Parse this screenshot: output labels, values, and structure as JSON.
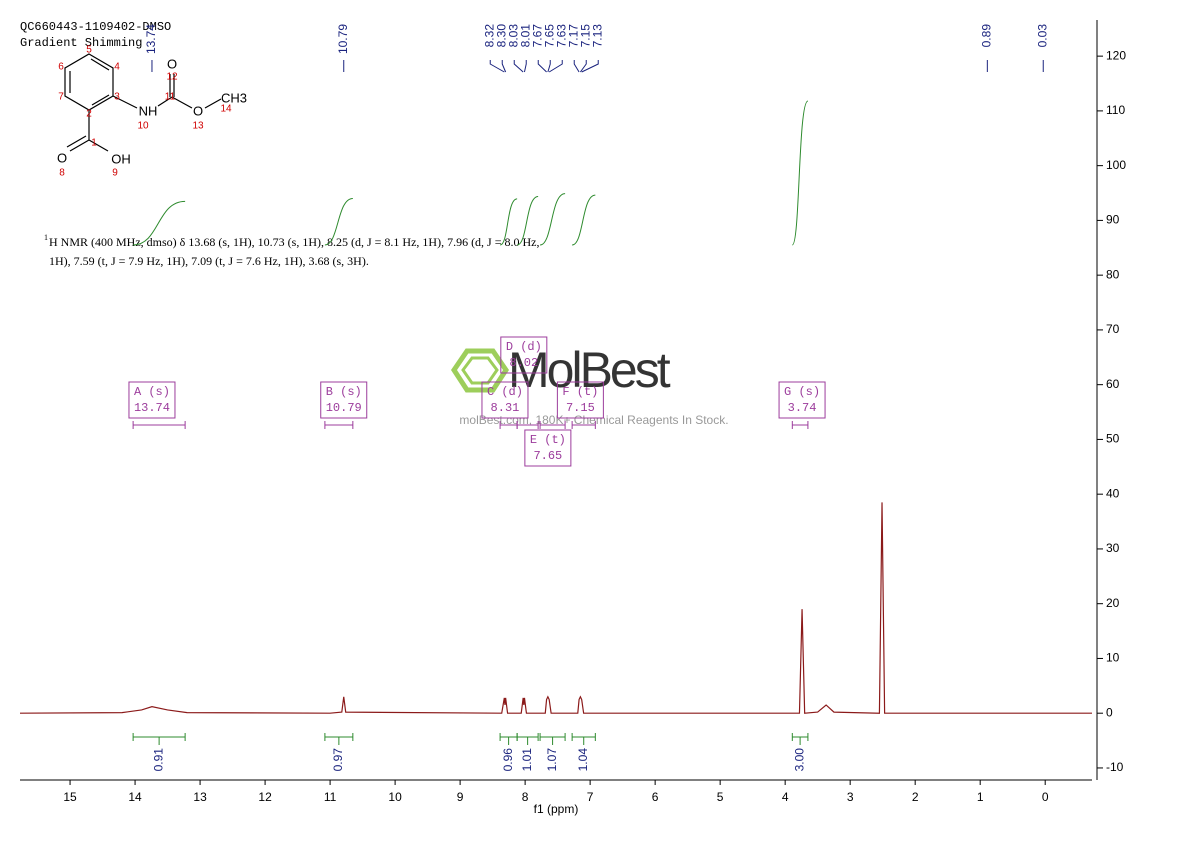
{
  "header": {
    "sample": "QC660443-1109402-DMSO",
    "method": "Gradient Shimming"
  },
  "structure": {
    "atoms": [
      "O",
      "NH",
      "OH",
      "O",
      "O",
      "CH3"
    ],
    "numbers": [
      1,
      2,
      3,
      4,
      5,
      6,
      7,
      8,
      9,
      10,
      11,
      12,
      13,
      14
    ]
  },
  "description": {
    "mass_number": 1,
    "lines": [
      "H NMR (400 MHz, dmso) δ 13.68 (s, 1H), 10.73 (s, 1H), 8.25 (d, J = 8.1 Hz, 1H), 7.96 (d, J = 8.0 Hz,",
      "1H), 7.59 (t, J = 7.9 Hz, 1H), 7.09 (t, J = 7.6 Hz, 1H), 3.68 (s, 3H)."
    ]
  },
  "watermark": {
    "brand": "MolBest",
    "tagline": "molBest.com, 180K+ Chemical Reagents In Stock."
  },
  "chart_data": {
    "type": "line",
    "x_label": "f1 (ppm)",
    "x": [
      15.77,
      14.2,
      13.9,
      13.74,
      13.5,
      13.2,
      11,
      10.82,
      10.79,
      10.76,
      8.36,
      8.32,
      8.31,
      8.3,
      8.27,
      8.06,
      8.03,
      8.02,
      8.01,
      7.98,
      7.69,
      7.67,
      7.65,
      7.63,
      7.6,
      7.19,
      7.17,
      7.15,
      7.13,
      7.1,
      3.78,
      3.74,
      3.7,
      3.5,
      3.37,
      3.25,
      2.55,
      2.51,
      2.47,
      -0.72
    ],
    "series": [
      {
        "color": "#8b1a1a",
        "values": [
          0,
          0.1,
          0.6,
          1.2,
          0.6,
          0.1,
          0,
          0.2,
          3,
          0.2,
          0,
          2.8,
          1.5,
          2.8,
          0,
          0,
          2.8,
          1.5,
          2.8,
          0,
          0,
          2.5,
          3,
          2.5,
          0,
          0,
          2.5,
          3,
          2.5,
          0,
          0,
          19,
          0,
          0.2,
          1.5,
          0.2,
          0,
          38.5,
          0,
          0
        ]
      }
    ],
    "xlim": [
      15.77,
      -0.72
    ],
    "xticks": [
      15,
      14,
      13,
      12,
      11,
      10,
      9,
      8,
      7,
      6,
      5,
      4,
      3,
      2,
      1,
      0
    ],
    "ylim": [
      -12.2,
      126.6
    ],
    "yticks": [
      -10,
      0,
      10,
      20,
      30,
      40,
      50,
      60,
      70,
      80,
      90,
      100,
      110,
      120
    ],
    "peaks": [
      {
        "value": 13.74,
        "label": "13.74"
      },
      {
        "value": 10.79,
        "label": "10.79"
      },
      {
        "value": 8.32,
        "label": "8.32"
      },
      {
        "value": 8.3,
        "label": "8.30"
      },
      {
        "value": 8.03,
        "label": "8.03"
      },
      {
        "value": 8.01,
        "label": "8.01"
      },
      {
        "value": 7.67,
        "label": "7.67"
      },
      {
        "value": 7.65,
        "label": "7.65"
      },
      {
        "value": 7.63,
        "label": "7.63"
      },
      {
        "value": 7.17,
        "label": "7.17"
      },
      {
        "value": 7.15,
        "label": "7.15"
      },
      {
        "value": 7.13,
        "label": "7.13"
      },
      {
        "value": 0.89,
        "label": "0.89"
      },
      {
        "value": 0.03,
        "label": "0.03"
      }
    ],
    "integrals": {
      "ranges": [
        [
          14.03,
          13.23
        ],
        [
          11.08,
          10.65
        ],
        [
          8.385,
          8.123
        ],
        [
          8.123,
          7.8
        ],
        [
          7.77,
          7.385
        ],
        [
          7.277,
          6.92
        ],
        [
          3.89,
          3.65
        ]
      ],
      "values": [
        0.91,
        0.97,
        0.96,
        1.01,
        1.07,
        1.04,
        3
      ],
      "value_labels": [
        "0.91",
        "0.97",
        "0.96",
        "1.01",
        "1.07",
        "1.04",
        "3.00"
      ]
    },
    "multiplets": [
      {
        "label": "A (s)",
        "shift": 13.74
      },
      {
        "label": "B (s)",
        "shift": 10.79
      },
      {
        "label": "C (d)",
        "shift": 8.31
      },
      {
        "label": "D (d)",
        "shift": 8.02
      },
      {
        "label": "E (t)",
        "shift": 7.65
      },
      {
        "label": "F (t)",
        "shift": 7.15
      },
      {
        "label": "G (s)",
        "shift": 3.74
      }
    ]
  }
}
